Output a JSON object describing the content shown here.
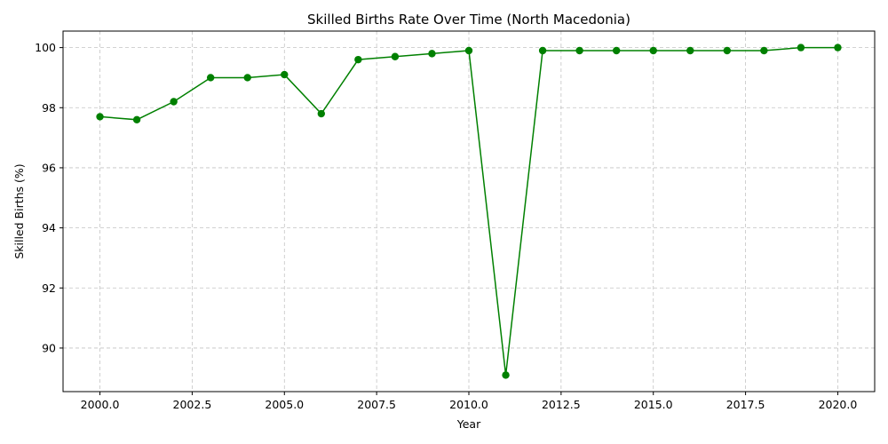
{
  "chart_data": {
    "type": "line",
    "title": "Skilled Births Rate Over Time (North Macedonia)",
    "xlabel": "Year",
    "ylabel": "Skilled Births (%)",
    "xlim": [
      1999.0,
      2021.0
    ],
    "ylim": [
      88.55,
      100.55
    ],
    "xticks": [
      2000.0,
      2002.5,
      2005.0,
      2007.5,
      2010.0,
      2012.5,
      2015.0,
      2017.5,
      2020.0
    ],
    "xtick_labels": [
      "2000.0",
      "2002.5",
      "2005.0",
      "2007.5",
      "2010.0",
      "2012.5",
      "2015.0",
      "2017.5",
      "2020.0"
    ],
    "yticks": [
      90,
      92,
      94,
      96,
      98,
      100
    ],
    "ytick_labels": [
      "90",
      "92",
      "94",
      "96",
      "98",
      "100"
    ],
    "grid": true,
    "color": "#008000",
    "marker": "circle",
    "series": [
      {
        "x": [
          2000,
          2001,
          2002,
          2003,
          2004,
          2005,
          2006,
          2007,
          2008,
          2009,
          2010,
          2011,
          2012,
          2013,
          2014,
          2015,
          2016,
          2017,
          2018,
          2019,
          2020
        ],
        "y": [
          97.7,
          97.6,
          98.2,
          99.0,
          99.0,
          99.1,
          97.8,
          99.6,
          99.7,
          99.8,
          99.9,
          89.1,
          99.9,
          99.9,
          99.9,
          99.9,
          99.9,
          99.9,
          99.9,
          100.0,
          100.0
        ]
      }
    ]
  }
}
